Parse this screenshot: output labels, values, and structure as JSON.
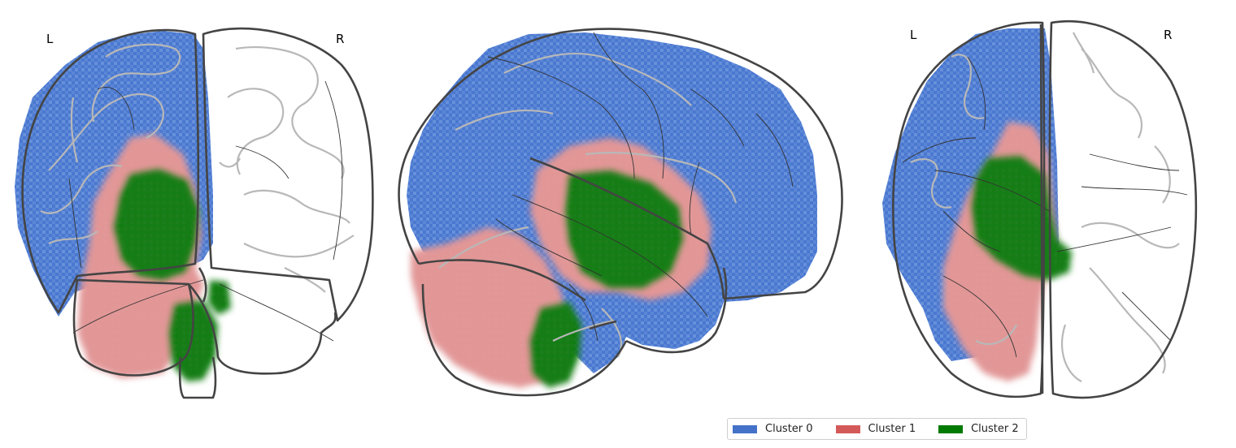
{
  "views": [
    {
      "name": "coronal",
      "left_label": "L",
      "right_label": "R"
    },
    {
      "name": "sagittal"
    },
    {
      "name": "axial",
      "left_label": "L",
      "right_label": "R"
    }
  ],
  "colors": {
    "cluster0": "#4472c9",
    "cluster1": "#d45a5a",
    "cluster2": "#007a00",
    "outline": "#3a3a3a",
    "sulci": "#b8b8b8"
  },
  "legend": {
    "items": [
      {
        "label": "Cluster 0",
        "color": "#4472c9"
      },
      {
        "label": "Cluster 1",
        "color": "#d45a5a"
      },
      {
        "label": "Cluster 2",
        "color": "#007a00"
      }
    ]
  }
}
